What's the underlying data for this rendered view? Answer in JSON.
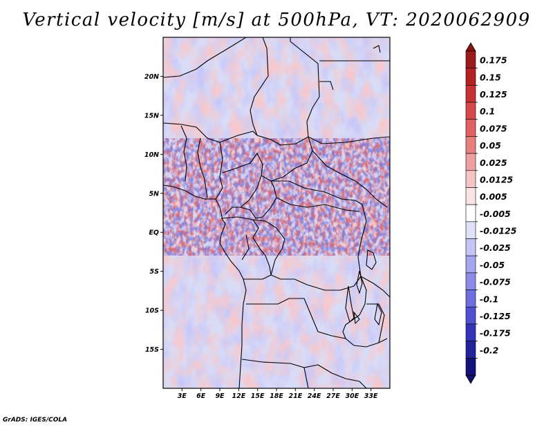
{
  "title": "Vertical velocity [m/s] at 500hPa, VT: 2020062909",
  "footer": "GrADS: IGES/COLA",
  "map": {
    "lon_range": [
      0,
      36
    ],
    "lat_range": [
      -20,
      25
    ],
    "lat_ticks": [
      "20N",
      "15N",
      "10N",
      "5N",
      "EQ",
      "5S",
      "10S",
      "15S"
    ],
    "lon_ticks": [
      "3E",
      "6E",
      "9E",
      "12E",
      "15E",
      "18E",
      "21E",
      "24E",
      "27E",
      "30E",
      "33E"
    ]
  },
  "colorbar": {
    "labels": [
      "0.175",
      "0.15",
      "0.125",
      "0.1",
      "0.075",
      "0.05",
      "0.025",
      "0.0125",
      "0.005",
      "-0.005",
      "-0.0125",
      "-0.025",
      "-0.05",
      "-0.075",
      "-0.1",
      "-0.125",
      "-0.175",
      "-0.2"
    ],
    "colors": [
      "#9b1a1a",
      "#b52020",
      "#c83232",
      "#d84848",
      "#e06262",
      "#e88080",
      "#f0a0a0",
      "#f6c4c4",
      "#fbe4e4",
      "#ffffff",
      "#e0e0fa",
      "#c4c4f6",
      "#a6a6ee",
      "#8c8ce8",
      "#6e6ee0",
      "#5050d0",
      "#3434b8",
      "#22229a",
      "#121278"
    ],
    "top_color": "#8b1010",
    "bottom_color": "#101070"
  }
}
